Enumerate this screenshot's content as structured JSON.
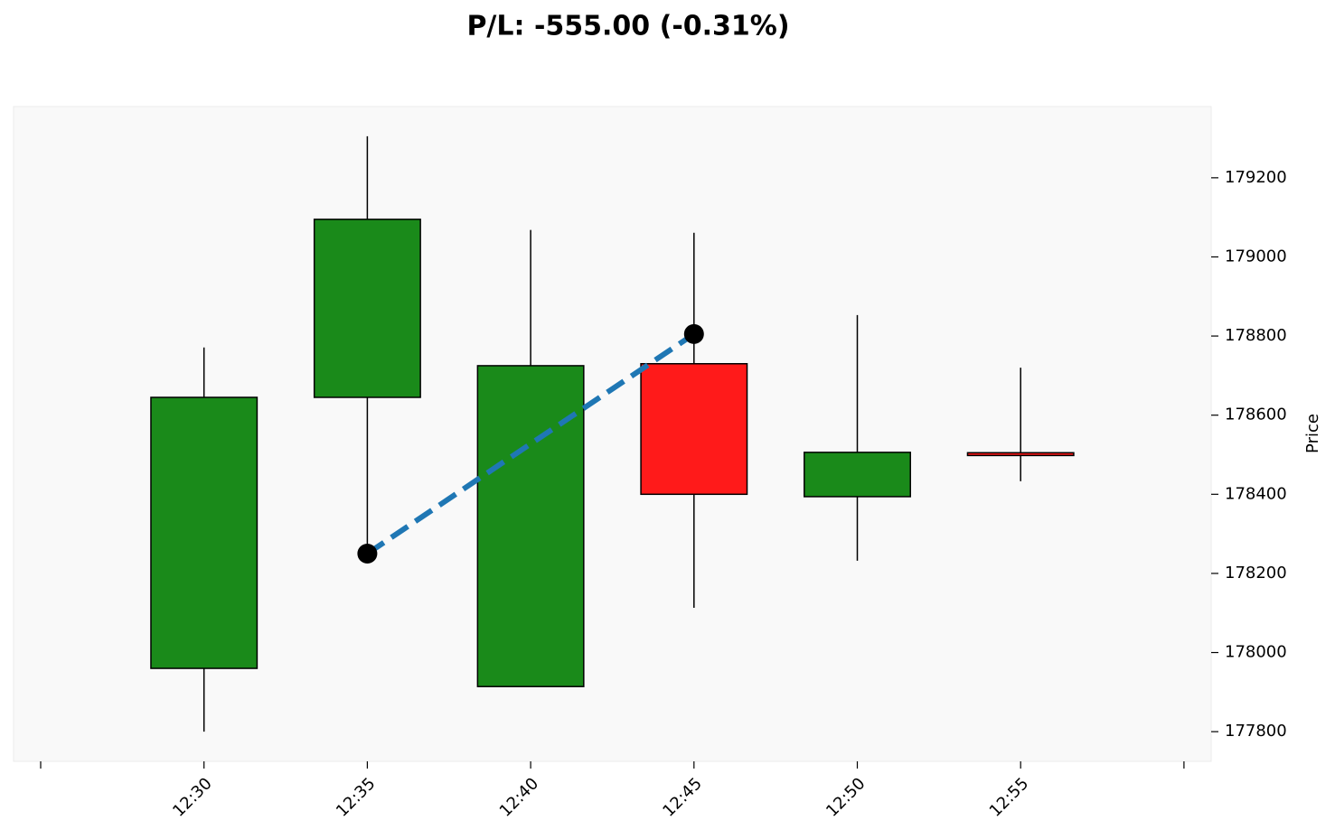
{
  "chart_data": {
    "type": "candlestick",
    "title": "P/L: -555.00 (-0.31%)",
    "y_label": "Price",
    "categories": [
      null,
      "12:30",
      "12:35",
      "12:40",
      "12:45",
      "12:50",
      "12:55",
      null
    ],
    "open": [
      null,
      177960,
      178645,
      177914,
      178730,
      178394,
      178505,
      null
    ],
    "high": [
      null,
      178771,
      179305,
      179068,
      179061,
      178853,
      178720,
      null
    ],
    "low": [
      null,
      177800,
      178250,
      177914,
      178113,
      178232,
      178433,
      null
    ],
    "close": [
      null,
      178645,
      179095,
      178725,
      178400,
      178506,
      178498,
      null
    ],
    "up_color": "#1a8a1a",
    "down_color": "#ff1a1a",
    "trade": {
      "x": [
        "12:35",
        "12:45"
      ],
      "values": [
        178250,
        178805
      ],
      "color": "#1f77b4",
      "marker_color": "#000000"
    },
    "ylim": [
      177725,
      179380
    ],
    "yticks": [
      177800,
      178000,
      178200,
      178400,
      178600,
      178800,
      179000,
      179200
    ],
    "y_axis_side": "right"
  }
}
